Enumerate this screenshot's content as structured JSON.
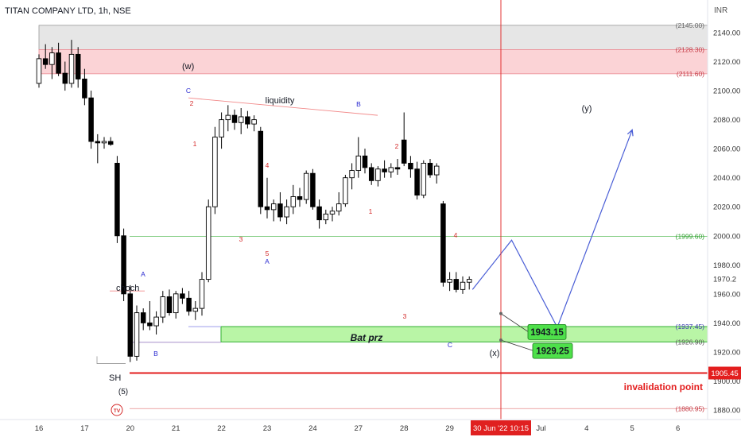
{
  "header": {
    "title": "TITAN COMPANY LTD, 1h, NSE",
    "currency": "INR"
  },
  "colors": {
    "bull_fill": "#ffffff",
    "bear_fill": "#000000",
    "candle_stroke": "#000000",
    "green_zone": "#b9f5a6",
    "green_border": "#2fae2f",
    "red_zone": "#fbd3d6",
    "red_line": "#e31e1e",
    "gray_zone": "#e6e6e6",
    "path_blue": "#4a5ed6",
    "crosshair": "#e02020",
    "label_green": "#4ee04a"
  },
  "chart_data": {
    "type": "candlestick",
    "y_axis": {
      "min": 1870,
      "max": 2155,
      "ticks": [
        1880,
        1900,
        1920,
        1940,
        1960,
        1970.2,
        1980,
        2000,
        2020,
        2040,
        2060,
        2080,
        2100,
        2120,
        2140
      ]
    },
    "x_axis": {
      "labels": [
        "16",
        "17",
        "20",
        "21",
        "22",
        "23",
        "24",
        "27",
        "28",
        "29",
        "30 Jun '22   10:15",
        "Jul",
        "4",
        "5",
        "6"
      ],
      "label_index": [
        0,
        7,
        14,
        21,
        28,
        35,
        42,
        49,
        56,
        63,
        70,
        77,
        84,
        91,
        98
      ]
    },
    "candles": [
      [
        2105,
        2125,
        2102,
        2122
      ],
      [
        2122,
        2132,
        2115,
        2118
      ],
      [
        2118,
        2130,
        2108,
        2126
      ],
      [
        2126,
        2133,
        2110,
        2112
      ],
      [
        2112,
        2120,
        2100,
        2105
      ],
      [
        2105,
        2135,
        2102,
        2125
      ],
      [
        2125,
        2130,
        2102,
        2108
      ],
      [
        2108,
        2115,
        2090,
        2095
      ],
      [
        2095,
        2100,
        2060,
        2065
      ],
      [
        2065,
        2070,
        2050,
        2064
      ],
      [
        2064,
        2068,
        2060,
        2065
      ],
      [
        2065,
        2068,
        2062,
        2063
      ],
      [
        2050,
        2055,
        1995,
        2000
      ],
      [
        2000,
        2005,
        1955,
        1960
      ],
      [
        1960,
        1966,
        1913,
        1917
      ],
      [
        1917,
        1952,
        1914,
        1947
      ],
      [
        1947,
        1950,
        1935,
        1940
      ],
      [
        1940,
        1955,
        1935,
        1938
      ],
      [
        1938,
        1948,
        1932,
        1944
      ],
      [
        1944,
        1962,
        1940,
        1958
      ],
      [
        1958,
        1963,
        1945,
        1947
      ],
      [
        1947,
        1962,
        1943,
        1960
      ],
      [
        1960,
        1964,
        1953,
        1957
      ],
      [
        1957,
        1962,
        1945,
        1948
      ],
      [
        1948,
        1955,
        1942,
        1950
      ],
      [
        1950,
        1975,
        1945,
        1970
      ],
      [
        1970,
        2025,
        1968,
        2020
      ],
      [
        2020,
        2075,
        2015,
        2068
      ],
      [
        2068,
        2085,
        2060,
        2080
      ],
      [
        2080,
        2090,
        2072,
        2083
      ],
      [
        2083,
        2087,
        2073,
        2078
      ],
      [
        2078,
        2088,
        2070,
        2082
      ],
      [
        2082,
        2086,
        2074,
        2077
      ],
      [
        2077,
        2083,
        2072,
        2080
      ],
      [
        2072,
        2075,
        2015,
        2020
      ],
      [
        2020,
        2040,
        2012,
        2018
      ],
      [
        2018,
        2025,
        2010,
        2022
      ],
      [
        2022,
        2030,
        2010,
        2013
      ],
      [
        2013,
        2025,
        2008,
        2020
      ],
      [
        2020,
        2035,
        2015,
        2027
      ],
      [
        2027,
        2033,
        2020,
        2025
      ],
      [
        2025,
        2045,
        2022,
        2043
      ],
      [
        2043,
        2046,
        2018,
        2020
      ],
      [
        2020,
        2025,
        2005,
        2011
      ],
      [
        2011,
        2018,
        2008,
        2015
      ],
      [
        2015,
        2020,
        2010,
        2017
      ],
      [
        2017,
        2030,
        2014,
        2022
      ],
      [
        2022,
        2042,
        2020,
        2040
      ],
      [
        2040,
        2050,
        2032,
        2045
      ],
      [
        2045,
        2068,
        2040,
        2055
      ],
      [
        2055,
        2060,
        2043,
        2047
      ],
      [
        2047,
        2050,
        2035,
        2038
      ],
      [
        2038,
        2048,
        2034,
        2046
      ],
      [
        2046,
        2052,
        2040,
        2044
      ],
      [
        2044,
        2050,
        2040,
        2047
      ],
      [
        2047,
        2053,
        2042,
        2046
      ],
      [
        2066,
        2085,
        2048,
        2050
      ],
      [
        2050,
        2055,
        2040,
        2046
      ],
      [
        2046,
        2051,
        2025,
        2028
      ],
      [
        2028,
        2052,
        2026,
        2050
      ],
      [
        2050,
        2053,
        2040,
        2042
      ],
      [
        2042,
        2050,
        2036,
        2048
      ],
      [
        2022,
        2024,
        1965,
        1968
      ],
      [
        1968,
        1975,
        1962,
        1970
      ],
      [
        1970,
        1975,
        1961,
        1963
      ],
      [
        1963,
        1972,
        1960,
        1968
      ],
      [
        1968,
        1972,
        1963,
        1970
      ]
    ],
    "levels": [
      {
        "label": "(2145.00)",
        "value": 2145.0
      },
      {
        "label": "(2128.30)",
        "value": 2128.3
      },
      {
        "label": "(2111.60)",
        "value": 2111.6
      },
      {
        "label": "(1999.60)",
        "value": 1999.6
      },
      {
        "label": "(1937.45)",
        "value": 1937.45
      },
      {
        "label": "(1926.90)",
        "value": 1926.9
      },
      {
        "label": "1905.45",
        "value": 1905.45
      },
      {
        "label": "(1880.95)",
        "value": 1880.95
      }
    ],
    "projection": [
      {
        "i": 66.5,
        "v": 1963
      },
      {
        "i": 72.5,
        "v": 1997
      },
      {
        "i": 79.5,
        "v": 1937
      },
      {
        "i": 91,
        "v": 2073
      }
    ],
    "price_labels": [
      "1943.15",
      "1929.25"
    ],
    "annotations": {
      "w": "(w)",
      "y": "(y)",
      "x": "(x)",
      "liquidity": "liquidity",
      "choch": "choch",
      "sh": "SH",
      "five_paren": "(5)",
      "bat_prz": "Bat prz",
      "invalidation": "invalidation point",
      "num_1a": "1",
      "num_2a": "2",
      "num_3a": "3",
      "num_4a": "4",
      "num_5a": "5",
      "num_1b": "1",
      "num_2b": "2",
      "num_3b": "3",
      "num_4b": "4",
      "A1": "A",
      "B1": "B",
      "C1": "C",
      "A2": "A",
      "B2": "B",
      "C2": "C",
      "tv": "TV"
    }
  }
}
